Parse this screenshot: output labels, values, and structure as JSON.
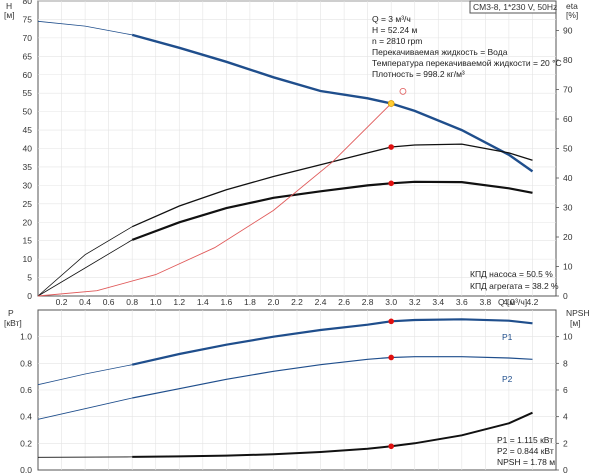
{
  "header": {
    "title": "CM3-8, 1*230 V, 50Hz"
  },
  "chart_data": [
    {
      "type": "line",
      "panel": "top",
      "x_axis": {
        "label": "Q [м³/ч]",
        "range": [
          0,
          4.4
        ],
        "ticks": [
          0.2,
          0.4,
          0.6,
          0.8,
          1.0,
          1.2,
          1.4,
          1.6,
          1.8,
          2.0,
          2.2,
          2.4,
          2.6,
          2.8,
          3.0,
          3.2,
          3.4,
          3.6,
          3.8,
          4.0,
          4.2
        ]
      },
      "y_left": {
        "label": "H",
        "unit": "[м]",
        "range": [
          0,
          80
        ],
        "ticks": [
          0,
          5,
          10,
          15,
          20,
          25,
          30,
          35,
          40,
          45,
          50,
          55,
          60,
          65,
          70,
          75,
          80
        ]
      },
      "y_right": {
        "label": "eta",
        "unit": "[%]",
        "range": [
          0,
          100
        ],
        "ticks": [
          0,
          10,
          20,
          30,
          40,
          50,
          60,
          70,
          80,
          90
        ]
      },
      "grid": true,
      "series": [
        {
          "kind": "head",
          "axis": "left",
          "color": "#1f4e8c",
          "x": [
            0,
            0.4,
            0.8,
            1.2,
            1.6,
            2.0,
            2.4,
            2.8,
            3.0,
            3.2,
            3.6,
            4.0,
            4.2
          ],
          "y": [
            74.5,
            73.2,
            70.8,
            67.3,
            63.5,
            59.3,
            55.6,
            53.6,
            52.2,
            50.2,
            45.0,
            38.3,
            33.8
          ]
        },
        {
          "kind": "eta-pump",
          "axis": "right",
          "color": "#111111",
          "x": [
            0,
            0.4,
            0.8,
            1.2,
            1.6,
            2.0,
            2.4,
            2.8,
            3.0,
            3.2,
            3.6,
            4.0,
            4.2
          ],
          "y": [
            0,
            14,
            23.5,
            30.5,
            36,
            40.5,
            44.5,
            48.5,
            50.5,
            51.2,
            51.5,
            48.5,
            46
          ]
        },
        {
          "kind": "eta-unit",
          "axis": "right",
          "color": "#111111",
          "x": [
            0,
            0.4,
            0.8,
            1.2,
            1.6,
            2.0,
            2.4,
            2.8,
            3.0,
            3.2,
            3.6,
            4.0,
            4.2
          ],
          "y": [
            0,
            9.5,
            19,
            25,
            29.8,
            33.3,
            35.5,
            37.5,
            38.2,
            38.7,
            38.6,
            36.5,
            35
          ]
        },
        {
          "kind": "system-curve",
          "axis": "left",
          "color": "#e05a5a",
          "x": [
            0,
            0.5,
            1.0,
            1.5,
            2.0,
            2.5,
            3.0
          ],
          "y": [
            0,
            1.45,
            5.8,
            13.1,
            23.2,
            36.3,
            52.2
          ]
        }
      ],
      "markers": [
        {
          "axis": "left",
          "x": 3.0,
          "y": 52.2,
          "style": "duty-point"
        },
        {
          "axis": "left",
          "x": 3.1,
          "y": 55.5,
          "style": "hollow"
        },
        {
          "axis": "right",
          "x": 3.0,
          "y": 50.5,
          "style": "red-dot"
        },
        {
          "axis": "right",
          "x": 3.0,
          "y": 38.2,
          "style": "red-dot"
        }
      ],
      "annotations": [
        "Q = 3 м³/ч",
        "H = 52.24 м",
        "n = 2810 rpm",
        "Перекачиваемая жидкость = Вода",
        "Температура перекачиваемой жидкости = 20 °C",
        "Плотность = 998.2 кг/м³",
        "КПД насоса = 50.5 %",
        "КПД агрегата = 38.2 %"
      ]
    },
    {
      "type": "line",
      "panel": "bottom",
      "x_axis": {
        "range": [
          0,
          4.4
        ]
      },
      "y_left": {
        "label": "P",
        "unit": "[кВт]",
        "range": [
          0,
          1.2
        ],
        "ticks": [
          0.0,
          0.2,
          0.4,
          0.6,
          0.8,
          1.0
        ]
      },
      "y_right": {
        "label": "NPSH",
        "unit": "[м]",
        "range": [
          0,
          12
        ],
        "ticks": [
          0,
          2,
          4,
          6,
          8,
          10
        ]
      },
      "grid": true,
      "series": [
        {
          "name": "P1",
          "axis": "left",
          "color": "#1f4e8c",
          "x": [
            0,
            0.4,
            0.8,
            1.2,
            1.6,
            2.0,
            2.4,
            2.8,
            3.0,
            3.2,
            3.6,
            4.0,
            4.2
          ],
          "y": [
            0.64,
            0.72,
            0.79,
            0.87,
            0.94,
            1.0,
            1.05,
            1.09,
            1.115,
            1.125,
            1.13,
            1.12,
            1.1
          ]
        },
        {
          "name": "P2",
          "axis": "left",
          "color": "#1f4e8c",
          "x": [
            0,
            0.4,
            0.8,
            1.2,
            1.6,
            2.0,
            2.4,
            2.8,
            3.0,
            3.2,
            3.6,
            4.0,
            4.2
          ],
          "y": [
            0.38,
            0.46,
            0.54,
            0.61,
            0.68,
            0.74,
            0.79,
            0.83,
            0.844,
            0.85,
            0.85,
            0.84,
            0.83
          ]
        },
        {
          "kind": "npsh",
          "axis": "right",
          "color": "#111111",
          "x": [
            0,
            0.8,
            1.2,
            1.6,
            2.0,
            2.4,
            2.8,
            3.0,
            3.2,
            3.6,
            4.0,
            4.2
          ],
          "y": [
            0.95,
            0.98,
            1.02,
            1.08,
            1.18,
            1.35,
            1.6,
            1.78,
            2.0,
            2.6,
            3.5,
            4.3
          ]
        }
      ],
      "markers": [
        {
          "axis": "left",
          "x": 3.0,
          "y": 1.115,
          "style": "red-dot"
        },
        {
          "axis": "left",
          "x": 3.0,
          "y": 0.844,
          "style": "red-dot"
        },
        {
          "axis": "right",
          "x": 3.0,
          "y": 1.78,
          "style": "red-dot"
        }
      ],
      "annotations": [
        "P1 = 1.115 кВт",
        "P2 = 0.844 кВт",
        "NPSH = 1.78 м"
      ]
    }
  ]
}
